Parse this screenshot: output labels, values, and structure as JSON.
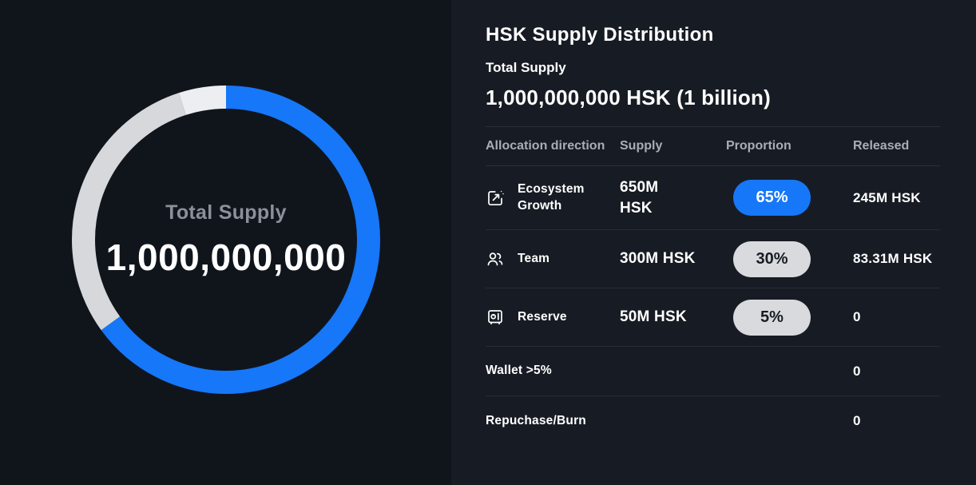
{
  "colors": {
    "accent_blue": "#1677f8",
    "ring_gray": "#d7d8dc",
    "ring_light": "#eceef2",
    "pill_gray_bg": "#d9dadd",
    "panel_bg": "#171c24",
    "chart_bg": "#10151c"
  },
  "chart_data": {
    "type": "pie",
    "title": "Total Supply",
    "center_label": "Total Supply",
    "center_value": "1,000,000,000",
    "categories": [
      "Ecosystem Growth",
      "Team",
      "Reserve"
    ],
    "values": [
      65,
      30,
      5
    ],
    "unit": "percent",
    "segment_colors": [
      "#1677f8",
      "#d7d8dc",
      "#eceef2"
    ],
    "donut": true,
    "legend_position": "none"
  },
  "panel": {
    "title": "HSK Supply Distribution",
    "subtitle": "Total Supply",
    "total_value": "1,000,000,000 HSK (1 billion)",
    "columns": {
      "allocation": "Allocation direction",
      "supply": "Supply",
      "proportion": "Proportion",
      "released": "Released"
    },
    "rows": [
      {
        "icon": "ecosystem-growth-icon",
        "label": "Ecosystem\nGrowth",
        "supply": "650M\nHSK",
        "proportion": "65%",
        "pill": "blue",
        "released": "245M HSK",
        "tall": true
      },
      {
        "icon": "team-icon",
        "label": "Team",
        "supply": "300M HSK",
        "proportion": "30%",
        "pill": "gray",
        "released": "83.31M HSK"
      },
      {
        "icon": "reserve-icon",
        "label": "Reserve",
        "supply": "50M HSK",
        "proportion": "5%",
        "pill": "gray",
        "released": "0"
      },
      {
        "label": "Wallet >5%",
        "released": "0",
        "simple": true
      },
      {
        "label": "Repuchase/Burn",
        "released": "0",
        "simple": true
      }
    ]
  }
}
